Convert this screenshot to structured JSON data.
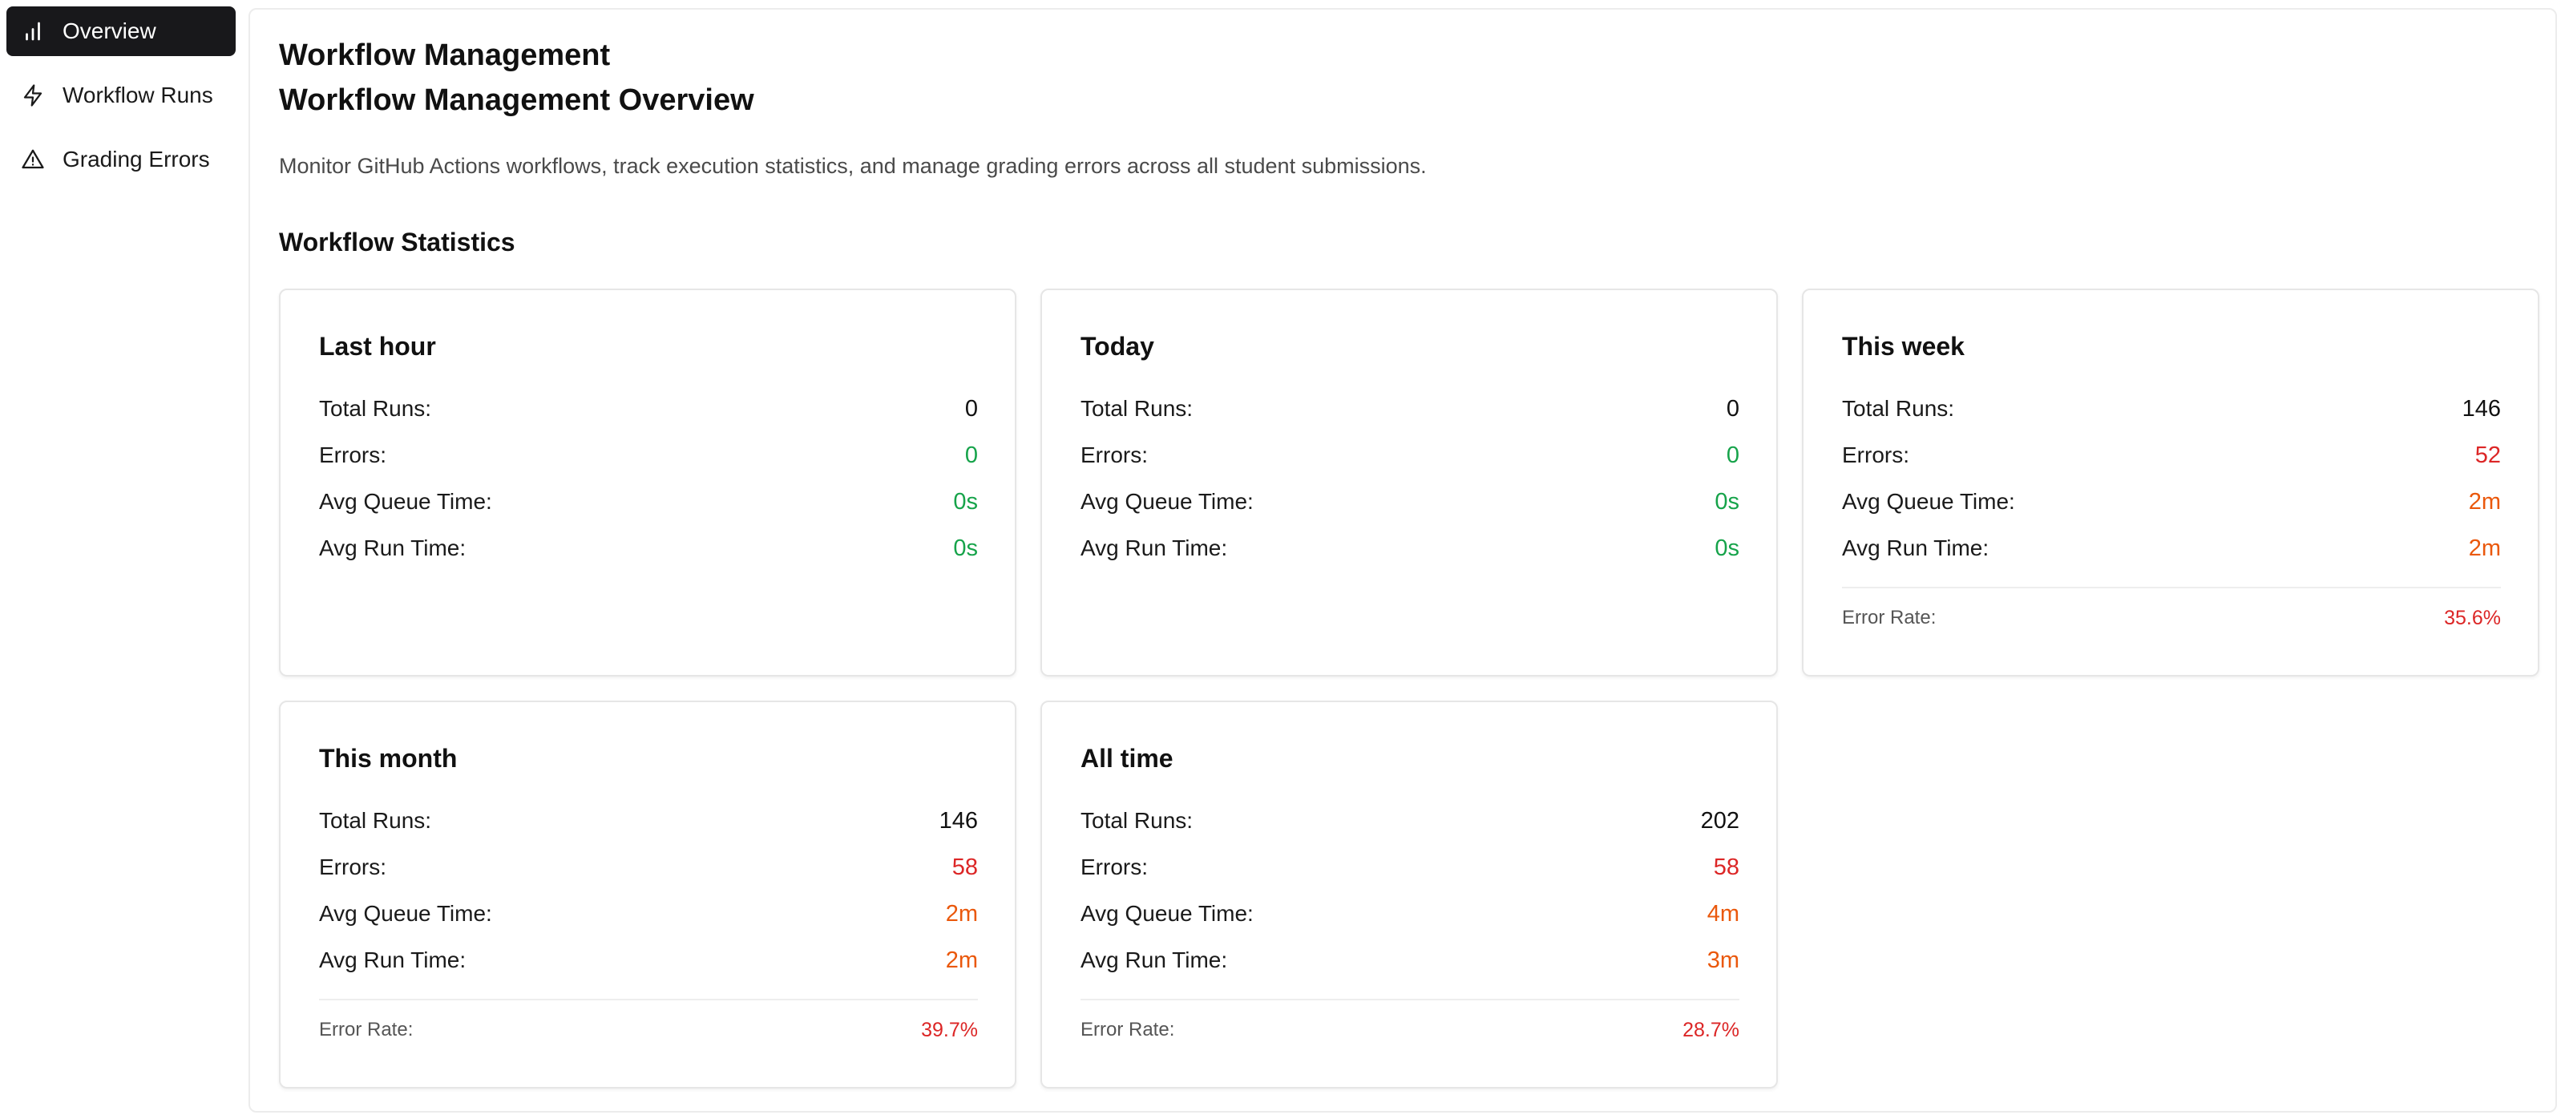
{
  "sidebar": {
    "items": [
      {
        "label": "Overview",
        "icon": "bar-chart-icon",
        "active": true
      },
      {
        "label": "Workflow Runs",
        "icon": "lightning-icon",
        "active": false
      },
      {
        "label": "Grading Errors",
        "icon": "warning-triangle-icon",
        "active": false
      }
    ]
  },
  "header": {
    "title": "Workflow Management",
    "heading": "Workflow Management Overview",
    "description": "Monitor GitHub Actions workflows, track execution statistics, and manage grading errors across all student submissions."
  },
  "stats": {
    "section_title": "Workflow Statistics",
    "labels": {
      "total_runs": "Total Runs:",
      "errors": "Errors:",
      "avg_queue": "Avg Queue Time:",
      "avg_run": "Avg Run Time:",
      "error_rate": "Error Rate:"
    },
    "cards": [
      {
        "title": "Last hour",
        "total_runs": "0",
        "errors": "0",
        "avg_queue": "0s",
        "avg_run": "0s",
        "error_rate": null
      },
      {
        "title": "Today",
        "total_runs": "0",
        "errors": "0",
        "avg_queue": "0s",
        "avg_run": "0s",
        "error_rate": null
      },
      {
        "title": "This week",
        "total_runs": "146",
        "errors": "52",
        "avg_queue": "2m",
        "avg_run": "2m",
        "error_rate": "35.6%"
      },
      {
        "title": "This month",
        "total_runs": "146",
        "errors": "58",
        "avg_queue": "2m",
        "avg_run": "2m",
        "error_rate": "39.7%"
      },
      {
        "title": "All time",
        "total_runs": "202",
        "errors": "58",
        "avg_queue": "4m",
        "avg_run": "3m",
        "error_rate": "28.7%"
      }
    ]
  },
  "colors": {
    "good": "#16a34a",
    "error": "#dc2626",
    "warn": "#ea580c",
    "neutral": "#111111",
    "active_nav_bg": "#18181b"
  }
}
